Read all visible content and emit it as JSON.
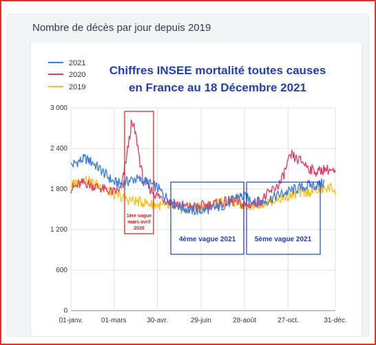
{
  "header": {
    "title": "Nombre de décès par jour depuis 2019"
  },
  "colors": {
    "frame": "#e0332f",
    "s2021": "#3a7bd5",
    "s2020": "#e03a6b",
    "s2019": "#f5c21b",
    "annotation_blue": "#1f3fb5",
    "annotation_red": "#d61c1c"
  },
  "chart_data": {
    "type": "line",
    "title": "Chiffres INSEE mortalité toutes causes",
    "subtitle": "en France au 18 Décembre 2021",
    "xlabel": "",
    "ylabel": "",
    "ylim": [
      0,
      3000
    ],
    "yticks": [
      "0",
      "600",
      "1 200",
      "1 800",
      "2 400",
      "3 000"
    ],
    "ytick_values": [
      0,
      600,
      1200,
      1800,
      2400,
      3000
    ],
    "xticks": [
      "01-janv.",
      "01-mars",
      "30-avr.",
      "29-juin",
      "28-août",
      "27-oct.",
      "31-déc."
    ],
    "xtick_days": [
      1,
      60,
      120,
      180,
      240,
      300,
      365
    ],
    "grid": true,
    "legend_position": "top-left",
    "series": [
      {
        "name": "2021",
        "color": "#3a7bd5",
        "points": [
          [
            1,
            2150
          ],
          [
            10,
            2200
          ],
          [
            20,
            2250
          ],
          [
            30,
            2200
          ],
          [
            40,
            2100
          ],
          [
            50,
            2000
          ],
          [
            60,
            1900
          ],
          [
            70,
            1880
          ],
          [
            80,
            1920
          ],
          [
            90,
            1950
          ],
          [
            100,
            1920
          ],
          [
            110,
            1880
          ],
          [
            120,
            1820
          ],
          [
            130,
            1700
          ],
          [
            140,
            1600
          ],
          [
            150,
            1550
          ],
          [
            160,
            1500
          ],
          [
            170,
            1480
          ],
          [
            180,
            1480
          ],
          [
            190,
            1500
          ],
          [
            200,
            1520
          ],
          [
            210,
            1560
          ],
          [
            220,
            1600
          ],
          [
            230,
            1700
          ],
          [
            240,
            1680
          ],
          [
            250,
            1640
          ],
          [
            260,
            1600
          ],
          [
            270,
            1620
          ],
          [
            280,
            1680
          ],
          [
            290,
            1720
          ],
          [
            300,
            1760
          ],
          [
            310,
            1800
          ],
          [
            320,
            1820
          ],
          [
            330,
            1860
          ],
          [
            340,
            1850
          ],
          [
            350,
            1900
          ]
        ]
      },
      {
        "name": "2020",
        "color": "#e03a6b",
        "points": [
          [
            1,
            1800
          ],
          [
            10,
            1850
          ],
          [
            20,
            1900
          ],
          [
            30,
            1850
          ],
          [
            40,
            1820
          ],
          [
            50,
            1780
          ],
          [
            60,
            1750
          ],
          [
            70,
            1800
          ],
          [
            75,
            2100
          ],
          [
            80,
            2450
          ],
          [
            84,
            2750
          ],
          [
            88,
            2700
          ],
          [
            92,
            2500
          ],
          [
            96,
            2200
          ],
          [
            100,
            1950
          ],
          [
            110,
            1800
          ],
          [
            120,
            1700
          ],
          [
            130,
            1650
          ],
          [
            140,
            1600
          ],
          [
            150,
            1560
          ],
          [
            160,
            1540
          ],
          [
            170,
            1530
          ],
          [
            180,
            1550
          ],
          [
            190,
            1560
          ],
          [
            200,
            1580
          ],
          [
            210,
            1600
          ],
          [
            220,
            1620
          ],
          [
            230,
            1600
          ],
          [
            240,
            1560
          ],
          [
            250,
            1580
          ],
          [
            260,
            1620
          ],
          [
            270,
            1700
          ],
          [
            280,
            1800
          ],
          [
            290,
            1900
          ],
          [
            295,
            2050
          ],
          [
            300,
            2200
          ],
          [
            305,
            2300
          ],
          [
            310,
            2250
          ],
          [
            320,
            2200
          ],
          [
            330,
            2100
          ],
          [
            340,
            2050
          ],
          [
            350,
            2100
          ],
          [
            358,
            2080
          ],
          [
            365,
            2020
          ]
        ]
      },
      {
        "name": "2019",
        "color": "#f5c21b",
        "points": [
          [
            1,
            1850
          ],
          [
            10,
            1900
          ],
          [
            20,
            1950
          ],
          [
            30,
            1900
          ],
          [
            40,
            1850
          ],
          [
            50,
            1800
          ],
          [
            60,
            1720
          ],
          [
            70,
            1680
          ],
          [
            80,
            1640
          ],
          [
            90,
            1620
          ],
          [
            100,
            1600
          ],
          [
            110,
            1580
          ],
          [
            120,
            1560
          ],
          [
            130,
            1540
          ],
          [
            140,
            1530
          ],
          [
            150,
            1510
          ],
          [
            160,
            1500
          ],
          [
            170,
            1520
          ],
          [
            180,
            1540
          ],
          [
            190,
            1560
          ],
          [
            200,
            1580
          ],
          [
            210,
            1600
          ],
          [
            220,
            1620
          ],
          [
            230,
            1600
          ],
          [
            240,
            1560
          ],
          [
            250,
            1560
          ],
          [
            260,
            1580
          ],
          [
            270,
            1600
          ],
          [
            280,
            1640
          ],
          [
            290,
            1660
          ],
          [
            300,
            1700
          ],
          [
            310,
            1720
          ],
          [
            320,
            1750
          ],
          [
            330,
            1760
          ],
          [
            340,
            1780
          ],
          [
            350,
            1800
          ],
          [
            358,
            1820
          ],
          [
            365,
            1780
          ]
        ]
      }
    ],
    "annotations": {
      "vague1": [
        "1ère vague",
        "mars-avril",
        "2020"
      ],
      "vague4": "4ème vague 2021",
      "vague5": "5ème vague 2021"
    }
  }
}
